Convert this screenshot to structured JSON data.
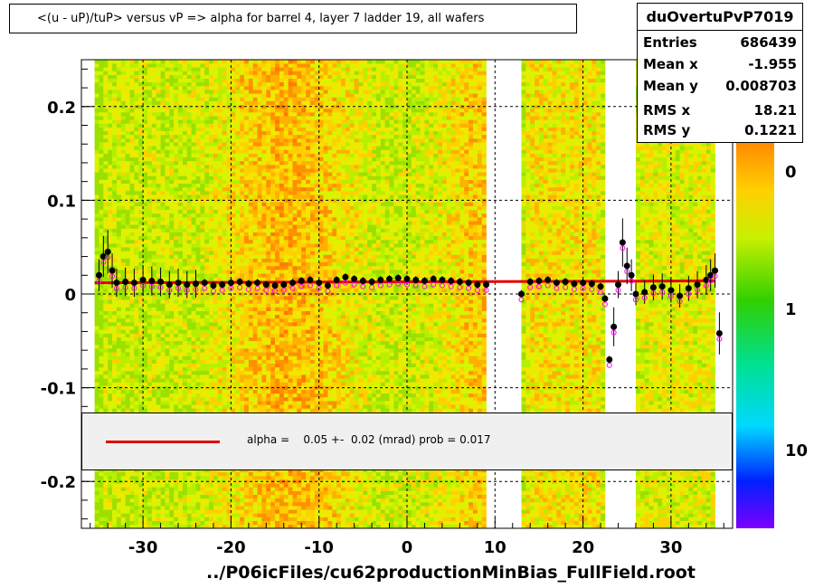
{
  "title": "<(u - uP)/tuP>  versus   vP => alpha for barrel 4, layer 7 ladder 19, all wafers",
  "stats": {
    "name": "duOvertuPvP7019",
    "rows": [
      {
        "label": "Entries",
        "value": "686439"
      },
      {
        "label": "Mean x",
        "value": "-1.955"
      },
      {
        "label": "Mean y",
        "value": "0.008703"
      },
      {
        "label": "RMS x",
        "value": "18.21"
      },
      {
        "label": "RMS y",
        "value": "0.1221"
      }
    ]
  },
  "legend": {
    "text": "alpha =    0.05 +-  0.02 (mrad) prob = 0.017",
    "line_color": "#e00000"
  },
  "xlabel": "../P06icFiles/cu62productionMinBias_FullField.root",
  "colors": {
    "fit_line": "#e00000",
    "profile_markers": "#000000",
    "secondary_markers": "#ff00ff"
  },
  "chart_data": {
    "type": "heatmap",
    "xlim": [
      -37,
      37
    ],
    "ylim": [
      -0.25,
      0.25
    ],
    "x_ticks": [
      -30,
      -20,
      -10,
      0,
      10,
      20,
      30
    ],
    "y_ticks": [
      {
        "v": 0.2,
        "t": "0.2"
      },
      {
        "v": 0.1,
        "t": "0.1"
      },
      {
        "v": 0,
        "t": "0"
      },
      {
        "v": -0.1,
        "t": "-0.1"
      },
      {
        "v": -0.2,
        "t": "-0.2"
      }
    ],
    "grid": true,
    "z_scale": "log",
    "color_scale_labels": [
      {
        "label": "0",
        "pos": 0.91
      },
      {
        "label": "1",
        "pos": 0.56
      },
      {
        "label": "10",
        "pos": 0.2
      }
    ],
    "empty_x_ranges": [
      [
        9,
        13
      ],
      [
        22.5,
        26
      ]
    ],
    "fit_line": {
      "x": [
        -35.5,
        35
      ],
      "y": [
        0.012,
        0.014
      ]
    },
    "profile": {
      "x": [
        -35,
        -34.5,
        -34,
        -33.5,
        -33,
        -32,
        -31,
        -30,
        -29,
        -28,
        -27,
        -26,
        -25,
        -24,
        -23,
        -22,
        -21,
        -20,
        -19,
        -18,
        -17,
        -16,
        -15,
        -14,
        -13,
        -12,
        -11,
        -10,
        -9,
        -8,
        -7,
        -6,
        -5,
        -4,
        -3,
        -2,
        -1,
        0,
        1,
        2,
        3,
        4,
        5,
        6,
        7,
        8,
        9,
        13,
        14,
        15,
        16,
        17,
        18,
        19,
        20,
        21,
        22,
        22.5,
        23,
        23.5,
        24,
        24.5,
        25,
        25.5,
        26,
        27,
        28,
        29,
        30,
        31,
        32,
        33,
        34,
        34.5,
        35,
        35.5
      ],
      "y": [
        0.02,
        0.04,
        0.045,
        0.025,
        0.012,
        0.013,
        0.012,
        0.015,
        0.014,
        0.013,
        0.01,
        0.012,
        0.01,
        0.011,
        0.012,
        0.009,
        0.01,
        0.012,
        0.013,
        0.011,
        0.012,
        0.01,
        0.009,
        0.01,
        0.012,
        0.014,
        0.015,
        0.012,
        0.009,
        0.015,
        0.018,
        0.016,
        0.014,
        0.013,
        0.015,
        0.016,
        0.017,
        0.016,
        0.015,
        0.014,
        0.016,
        0.015,
        0.014,
        0.013,
        0.012,
        0.01,
        0.01,
        0.0,
        0.013,
        0.014,
        0.015,
        0.012,
        0.013,
        0.011,
        0.012,
        0.011,
        0.008,
        -0.005,
        -0.07,
        -0.035,
        0.01,
        0.055,
        0.03,
        0.02,
        0.0,
        0.002,
        0.007,
        0.008,
        0.004,
        -0.002,
        0.006,
        0.01,
        0.015,
        0.02,
        0.025,
        -0.042
      ]
    }
  }
}
